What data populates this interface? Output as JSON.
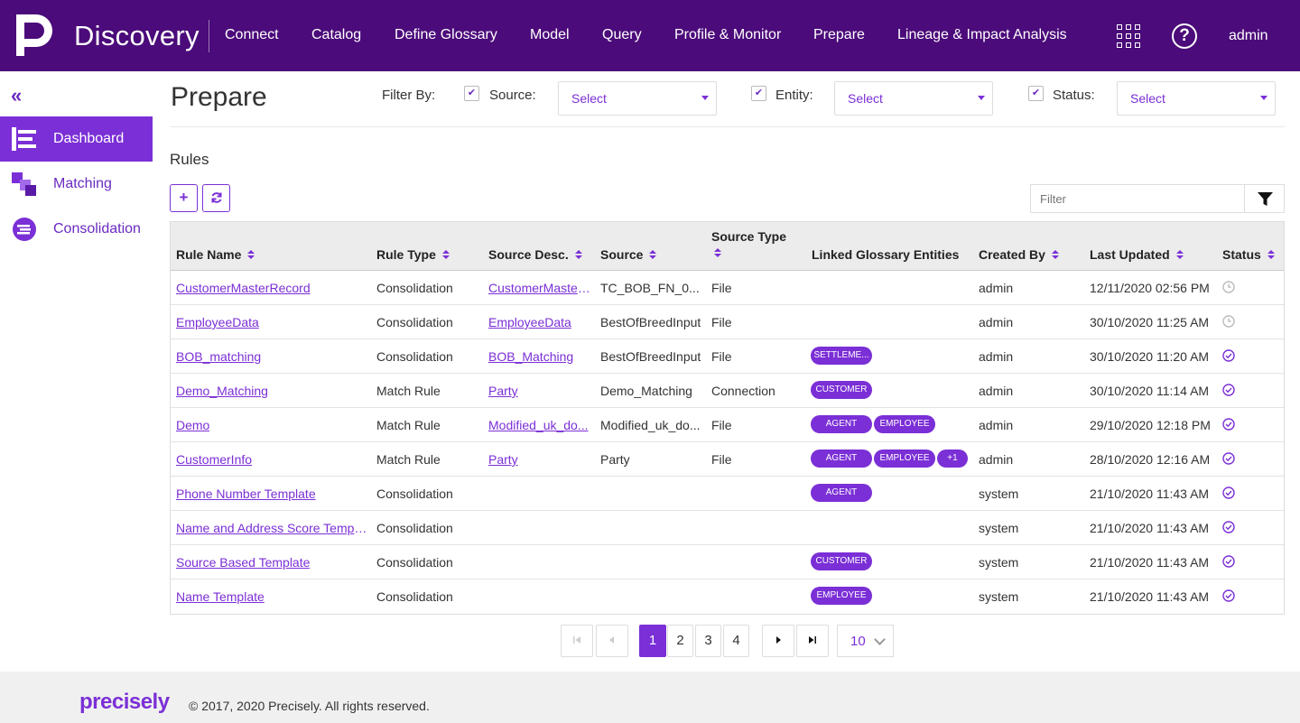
{
  "app": {
    "brand": "Discovery",
    "user": "admin"
  },
  "nav": {
    "items": [
      "Connect",
      "Catalog",
      "Define Glossary",
      "Model",
      "Query",
      "Profile & Monitor",
      "Prepare",
      "Lineage & Impact Analysis"
    ]
  },
  "sidebar": {
    "items": [
      {
        "label": "Dashboard",
        "icon": "dashboard-icon"
      },
      {
        "label": "Matching",
        "icon": "matching-icon"
      },
      {
        "label": "Consolidation",
        "icon": "consolidation-icon"
      }
    ],
    "active": "Dashboard"
  },
  "header": {
    "title": "Prepare",
    "filter_by": "Filter By:",
    "filters": [
      {
        "label": "Source:",
        "placeholder": "Select"
      },
      {
        "label": "Entity:",
        "placeholder": "Select"
      },
      {
        "label": "Status:",
        "placeholder": "Select"
      }
    ]
  },
  "rules": {
    "title": "Rules",
    "filter_placeholder": "Filter",
    "columns": [
      "Rule Name",
      "Rule Type",
      "Source Desc.",
      "Source",
      "Source Type",
      "Linked Glossary Entities",
      "Created By",
      "Last Updated",
      "Status"
    ],
    "rows": [
      {
        "name": "CustomerMasterRecord",
        "type": "Consolidation",
        "desc": "CustomerMasterRecord",
        "source": "TC_BOB_FN_0...",
        "source_type": "File",
        "entities": [],
        "created_by": "admin",
        "updated": "12/11/2020 02:56 PM",
        "status": "pending"
      },
      {
        "name": "EmployeeData",
        "type": "Consolidation",
        "desc": "EmployeeData",
        "source": "BestOfBreedInput",
        "source_type": "File",
        "entities": [],
        "created_by": "admin",
        "updated": "30/10/2020 11:25 AM",
        "status": "pending"
      },
      {
        "name": "BOB_matching",
        "type": "Consolidation",
        "desc": "BOB_Matching",
        "source": "BestOfBreedInput",
        "source_type": "File",
        "entities": [
          "SETTLEME..."
        ],
        "created_by": "admin",
        "updated": "30/10/2020 11:20 AM",
        "status": "done"
      },
      {
        "name": "Demo_Matching",
        "type": "Match Rule",
        "desc": "Party",
        "source": "Demo_Matching",
        "source_type": "Connection",
        "entities": [
          "CUSTOMER"
        ],
        "created_by": "admin",
        "updated": "30/10/2020 11:14 AM",
        "status": "done"
      },
      {
        "name": "Demo",
        "type": "Match Rule",
        "desc": "Modified_uk_do...",
        "source": "Modified_uk_do...",
        "source_type": "File",
        "entities": [
          "AGENT",
          "EMPLOYEE"
        ],
        "created_by": "admin",
        "updated": "29/10/2020 12:18 PM",
        "status": "done"
      },
      {
        "name": "CustomerInfo",
        "type": "Match Rule",
        "desc": "Party",
        "source": "Party",
        "source_type": "File",
        "entities": [
          "AGENT",
          "EMPLOYEE",
          "+1"
        ],
        "created_by": "admin",
        "updated": "28/10/2020 12:16 AM",
        "status": "done"
      },
      {
        "name": "Phone Number Template",
        "type": "Consolidation",
        "desc": "",
        "source": "",
        "source_type": "",
        "entities": [
          "AGENT"
        ],
        "created_by": "system",
        "updated": "21/10/2020 11:43 AM",
        "status": "done"
      },
      {
        "name": "Name and Address Score Templ...",
        "type": "Consolidation",
        "desc": "",
        "source": "",
        "source_type": "",
        "entities": [],
        "created_by": "system",
        "updated": "21/10/2020 11:43 AM",
        "status": "done"
      },
      {
        "name": "Source Based Template",
        "type": "Consolidation",
        "desc": "",
        "source": "",
        "source_type": "",
        "entities": [
          "CUSTOMER"
        ],
        "created_by": "system",
        "updated": "21/10/2020 11:43 AM",
        "status": "done"
      },
      {
        "name": "Name Template",
        "type": "Consolidation",
        "desc": "",
        "source": "",
        "source_type": "",
        "entities": [
          "EMPLOYEE"
        ],
        "created_by": "system",
        "updated": "21/10/2020 11:43 AM",
        "status": "done"
      }
    ]
  },
  "pagination": {
    "pages": [
      "1",
      "2",
      "3",
      "4"
    ],
    "current": "1",
    "page_size": "10"
  },
  "footer": {
    "logo": "precisely",
    "copyright": "© 2017, 2020 Precisely. All rights reserved."
  },
  "colors": {
    "topbar": "#4b0b7a",
    "accent": "#7b2fd6"
  }
}
